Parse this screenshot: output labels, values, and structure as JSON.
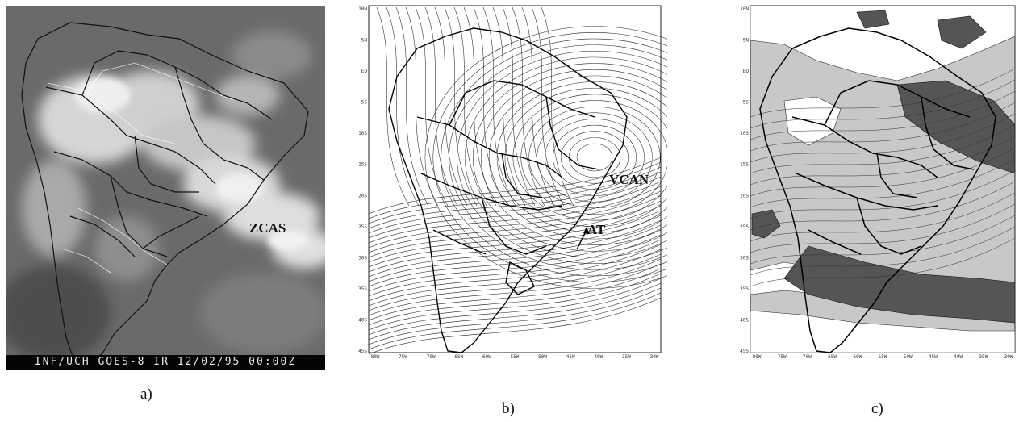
{
  "panels": [
    {
      "id": "a",
      "caption": "a)",
      "type": "satellite-infrared-image",
      "feature_labels": [
        "ZCAS"
      ],
      "stamp": "INF/UCH GOES-8 IR 12/02/95 00:00Z"
    },
    {
      "id": "b",
      "caption": "b)",
      "type": "streamline-map",
      "feature_labels": [
        "VCAN",
        "AT"
      ],
      "lat_ticks": [
        "10N",
        "5N",
        "EQ",
        "5S",
        "10S",
        "15S",
        "20S",
        "25S",
        "30S",
        "35S",
        "40S",
        "45S"
      ],
      "lon_ticks": [
        "80W",
        "75W",
        "70W",
        "65W",
        "60W",
        "55W",
        "50W",
        "45W",
        "40W",
        "35W",
        "30W"
      ]
    },
    {
      "id": "c",
      "caption": "c)",
      "type": "shaded-contour-map",
      "feature_labels": [],
      "lat_ticks": [
        "10N",
        "5N",
        "EQ",
        "5S",
        "10S",
        "15S",
        "20S",
        "25S",
        "30S",
        "35S",
        "40S",
        "45S"
      ],
      "lon_ticks": [
        "80W",
        "75W",
        "70W",
        "65W",
        "60W",
        "55W",
        "50W",
        "45W",
        "40W",
        "35W",
        "30W"
      ]
    }
  ],
  "colors": {
    "satellite_background": "#6a6a6a",
    "cloud": "#dcdcdc",
    "land_outline": "#111111",
    "shade_light": "#c8c8c8",
    "shade_dark": "#555555"
  }
}
